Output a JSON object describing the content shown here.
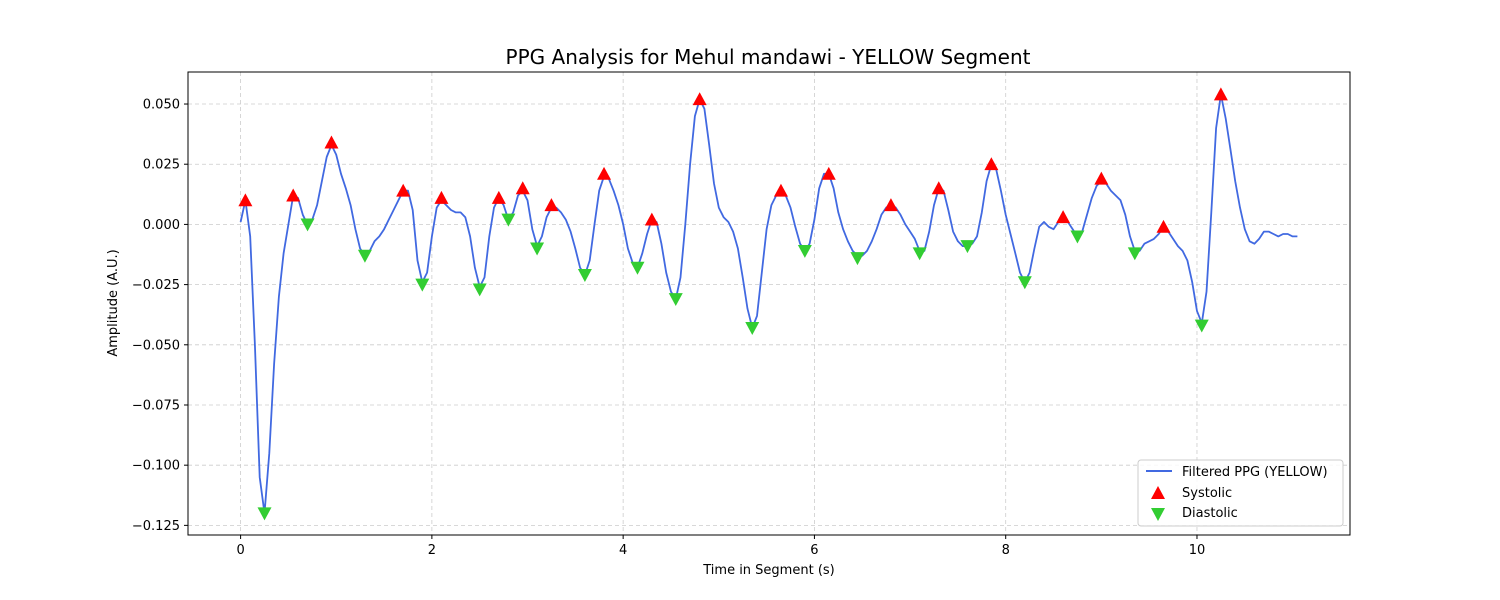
{
  "chart_data": {
    "type": "line",
    "title": "PPG Analysis for Mehul mandawi - YELLOW Segment",
    "xlabel": "Time in Segment (s)",
    "ylabel": "Amplitude (A.U.)",
    "xlim": [
      -0.55,
      11.6
    ],
    "ylim": [
      -0.129,
      0.0633
    ],
    "xticks": [
      0,
      2,
      4,
      6,
      8,
      10
    ],
    "xtick_labels": [
      "0",
      "2",
      "4",
      "6",
      "8",
      "10"
    ],
    "yticks": [
      0.05,
      0.025,
      0.0,
      -0.025,
      -0.05,
      -0.075,
      -0.1,
      -0.125
    ],
    "ytick_labels": [
      "0.050",
      "0.025",
      "0.000",
      "−0.025",
      "−0.050",
      "−0.075",
      "−0.100",
      "−0.125"
    ],
    "grid": true,
    "legend_position": "lower-right",
    "colors": {
      "line": "#4169e1",
      "systolic": "#ff0000",
      "diastolic": "#32cd32",
      "grid": "#cccccc"
    },
    "series": [
      {
        "name": "Filtered PPG (YELLOW)",
        "kind": "line",
        "points": [
          [
            0.0,
            0.001
          ],
          [
            0.05,
            0.01
          ],
          [
            0.1,
            -0.005
          ],
          [
            0.15,
            -0.05
          ],
          [
            0.2,
            -0.105
          ],
          [
            0.25,
            -0.12
          ],
          [
            0.3,
            -0.095
          ],
          [
            0.35,
            -0.058
          ],
          [
            0.4,
            -0.03
          ],
          [
            0.45,
            -0.012
          ],
          [
            0.5,
            0.0
          ],
          [
            0.55,
            0.012
          ],
          [
            0.6,
            0.011
          ],
          [
            0.65,
            0.004
          ],
          [
            0.7,
            0.0
          ],
          [
            0.75,
            0.002
          ],
          [
            0.8,
            0.008
          ],
          [
            0.85,
            0.018
          ],
          [
            0.9,
            0.028
          ],
          [
            0.95,
            0.033
          ],
          [
            1.0,
            0.029
          ],
          [
            1.05,
            0.021
          ],
          [
            1.1,
            0.015
          ],
          [
            1.15,
            0.008
          ],
          [
            1.2,
            -0.002
          ],
          [
            1.25,
            -0.01
          ],
          [
            1.3,
            -0.013
          ],
          [
            1.35,
            -0.011
          ],
          [
            1.4,
            -0.007
          ],
          [
            1.45,
            -0.005
          ],
          [
            1.5,
            -0.002
          ],
          [
            1.55,
            0.002
          ],
          [
            1.6,
            0.006
          ],
          [
            1.65,
            0.01
          ],
          [
            1.7,
            0.014
          ],
          [
            1.75,
            0.014
          ],
          [
            1.8,
            0.006
          ],
          [
            1.85,
            -0.015
          ],
          [
            1.9,
            -0.024
          ],
          [
            1.95,
            -0.02
          ],
          [
            2.0,
            -0.005
          ],
          [
            2.05,
            0.007
          ],
          [
            2.1,
            0.01
          ],
          [
            2.15,
            0.008
          ],
          [
            2.2,
            0.006
          ],
          [
            2.25,
            0.005
          ],
          [
            2.3,
            0.005
          ],
          [
            2.35,
            0.003
          ],
          [
            2.4,
            -0.005
          ],
          [
            2.45,
            -0.018
          ],
          [
            2.5,
            -0.026
          ],
          [
            2.55,
            -0.022
          ],
          [
            2.6,
            -0.005
          ],
          [
            2.65,
            0.007
          ],
          [
            2.7,
            0.011
          ],
          [
            2.75,
            0.008
          ],
          [
            2.8,
            0.002
          ],
          [
            2.85,
            0.005
          ],
          [
            2.9,
            0.012
          ],
          [
            2.95,
            0.014
          ],
          [
            3.0,
            0.01
          ],
          [
            3.05,
            -0.002
          ],
          [
            3.1,
            -0.009
          ],
          [
            3.15,
            -0.005
          ],
          [
            3.2,
            0.003
          ],
          [
            3.25,
            0.007
          ],
          [
            3.3,
            0.007
          ],
          [
            3.35,
            0.005
          ],
          [
            3.4,
            0.002
          ],
          [
            3.45,
            -0.003
          ],
          [
            3.5,
            -0.01
          ],
          [
            3.55,
            -0.018
          ],
          [
            3.6,
            -0.021
          ],
          [
            3.65,
            -0.015
          ],
          [
            3.7,
            0.0
          ],
          [
            3.75,
            0.014
          ],
          [
            3.8,
            0.02
          ],
          [
            3.85,
            0.019
          ],
          [
            3.9,
            0.014
          ],
          [
            3.95,
            0.008
          ],
          [
            4.0,
            0.0
          ],
          [
            4.05,
            -0.01
          ],
          [
            4.1,
            -0.016
          ],
          [
            4.15,
            -0.018
          ],
          [
            4.2,
            -0.012
          ],
          [
            4.25,
            -0.004
          ],
          [
            4.3,
            0.002
          ],
          [
            4.35,
            0.001
          ],
          [
            4.4,
            -0.008
          ],
          [
            4.45,
            -0.02
          ],
          [
            4.5,
            -0.028
          ],
          [
            4.55,
            -0.031
          ],
          [
            4.6,
            -0.022
          ],
          [
            4.65,
            0.0
          ],
          [
            4.7,
            0.025
          ],
          [
            4.75,
            0.045
          ],
          [
            4.8,
            0.052
          ],
          [
            4.85,
            0.048
          ],
          [
            4.9,
            0.033
          ],
          [
            4.95,
            0.017
          ],
          [
            5.0,
            0.007
          ],
          [
            5.05,
            0.003
          ],
          [
            5.1,
            0.001
          ],
          [
            5.15,
            -0.003
          ],
          [
            5.2,
            -0.01
          ],
          [
            5.25,
            -0.022
          ],
          [
            5.3,
            -0.035
          ],
          [
            5.35,
            -0.043
          ],
          [
            5.4,
            -0.038
          ],
          [
            5.45,
            -0.02
          ],
          [
            5.5,
            -0.002
          ],
          [
            5.55,
            0.008
          ],
          [
            5.6,
            0.012
          ],
          [
            5.65,
            0.013
          ],
          [
            5.7,
            0.012
          ],
          [
            5.75,
            0.007
          ],
          [
            5.8,
            -0.001
          ],
          [
            5.85,
            -0.008
          ],
          [
            5.9,
            -0.011
          ],
          [
            5.95,
            -0.008
          ],
          [
            6.0,
            0.002
          ],
          [
            6.05,
            0.015
          ],
          [
            6.1,
            0.021
          ],
          [
            6.15,
            0.021
          ],
          [
            6.2,
            0.015
          ],
          [
            6.25,
            0.005
          ],
          [
            6.3,
            -0.002
          ],
          [
            6.35,
            -0.007
          ],
          [
            6.4,
            -0.011
          ],
          [
            6.45,
            -0.013
          ],
          [
            6.5,
            -0.013
          ],
          [
            6.55,
            -0.011
          ],
          [
            6.6,
            -0.007
          ],
          [
            6.65,
            -0.002
          ],
          [
            6.7,
            0.004
          ],
          [
            6.75,
            0.007
          ],
          [
            6.8,
            0.008
          ],
          [
            6.85,
            0.007
          ],
          [
            6.9,
            0.004
          ],
          [
            6.95,
            0.0
          ],
          [
            7.0,
            -0.003
          ],
          [
            7.05,
            -0.006
          ],
          [
            7.1,
            -0.011
          ],
          [
            7.15,
            -0.011
          ],
          [
            7.2,
            -0.003
          ],
          [
            7.25,
            0.008
          ],
          [
            7.3,
            0.015
          ],
          [
            7.35,
            0.014
          ],
          [
            7.4,
            0.006
          ],
          [
            7.45,
            -0.003
          ],
          [
            7.5,
            -0.007
          ],
          [
            7.55,
            -0.009
          ],
          [
            7.6,
            -0.009
          ],
          [
            7.65,
            -0.008
          ],
          [
            7.7,
            -0.005
          ],
          [
            7.75,
            0.005
          ],
          [
            7.8,
            0.018
          ],
          [
            7.85,
            0.025
          ],
          [
            7.9,
            0.023
          ],
          [
            7.95,
            0.014
          ],
          [
            8.0,
            0.004
          ],
          [
            8.05,
            -0.004
          ],
          [
            8.1,
            -0.012
          ],
          [
            8.15,
            -0.02
          ],
          [
            8.2,
            -0.024
          ],
          [
            8.25,
            -0.02
          ],
          [
            8.3,
            -0.01
          ],
          [
            8.35,
            -0.001
          ],
          [
            8.4,
            0.001
          ],
          [
            8.45,
            -0.001
          ],
          [
            8.5,
            -0.002
          ],
          [
            8.55,
            0.001
          ],
          [
            8.6,
            0.003
          ],
          [
            8.65,
            0.001
          ],
          [
            8.7,
            -0.002
          ],
          [
            8.75,
            -0.005
          ],
          [
            8.8,
            -0.003
          ],
          [
            8.85,
            0.004
          ],
          [
            8.9,
            0.011
          ],
          [
            8.95,
            0.016
          ],
          [
            9.0,
            0.018
          ],
          [
            9.05,
            0.017
          ],
          [
            9.1,
            0.014
          ],
          [
            9.15,
            0.012
          ],
          [
            9.2,
            0.01
          ],
          [
            9.25,
            0.004
          ],
          [
            9.3,
            -0.005
          ],
          [
            9.35,
            -0.011
          ],
          [
            9.4,
            -0.011
          ],
          [
            9.45,
            -0.008
          ],
          [
            9.5,
            -0.007
          ],
          [
            9.55,
            -0.006
          ],
          [
            9.6,
            -0.004
          ],
          [
            9.65,
            -0.001
          ],
          [
            9.7,
            -0.003
          ],
          [
            9.75,
            -0.006
          ],
          [
            9.8,
            -0.009
          ],
          [
            9.85,
            -0.011
          ],
          [
            9.9,
            -0.015
          ],
          [
            9.95,
            -0.024
          ],
          [
            10.0,
            -0.036
          ],
          [
            10.05,
            -0.041
          ],
          [
            10.1,
            -0.028
          ],
          [
            10.15,
            0.005
          ],
          [
            10.2,
            0.04
          ],
          [
            10.25,
            0.054
          ],
          [
            10.3,
            0.044
          ],
          [
            10.35,
            0.031
          ],
          [
            10.4,
            0.018
          ],
          [
            10.45,
            0.007
          ],
          [
            10.5,
            -0.002
          ],
          [
            10.55,
            -0.007
          ],
          [
            10.6,
            -0.008
          ],
          [
            10.65,
            -0.006
          ],
          [
            10.7,
            -0.003
          ],
          [
            10.75,
            -0.003
          ],
          [
            10.8,
            -0.004
          ],
          [
            10.85,
            -0.005
          ],
          [
            10.9,
            -0.004
          ],
          [
            10.95,
            -0.004
          ],
          [
            11.0,
            -0.005
          ],
          [
            11.05,
            -0.005
          ]
        ]
      },
      {
        "name": "Systolic",
        "kind": "marker-up",
        "points": [
          [
            0.05,
            0.01
          ],
          [
            0.55,
            0.012
          ],
          [
            0.95,
            0.034
          ],
          [
            1.7,
            0.014
          ],
          [
            2.1,
            0.011
          ],
          [
            2.7,
            0.011
          ],
          [
            2.95,
            0.015
          ],
          [
            3.25,
            0.008
          ],
          [
            3.8,
            0.021
          ],
          [
            4.3,
            0.002
          ],
          [
            4.8,
            0.052
          ],
          [
            5.65,
            0.014
          ],
          [
            6.15,
            0.021
          ],
          [
            6.8,
            0.008
          ],
          [
            7.3,
            0.015
          ],
          [
            7.85,
            0.025
          ],
          [
            8.6,
            0.003
          ],
          [
            9.0,
            0.019
          ],
          [
            9.65,
            -0.001
          ],
          [
            10.25,
            0.054
          ]
        ]
      },
      {
        "name": "Diastolic",
        "kind": "marker-down",
        "points": [
          [
            0.25,
            -0.12
          ],
          [
            0.7,
            0.0
          ],
          [
            1.3,
            -0.013
          ],
          [
            1.9,
            -0.025
          ],
          [
            2.5,
            -0.027
          ],
          [
            2.8,
            0.002
          ],
          [
            3.1,
            -0.01
          ],
          [
            3.6,
            -0.021
          ],
          [
            4.15,
            -0.018
          ],
          [
            4.55,
            -0.031
          ],
          [
            5.35,
            -0.043
          ],
          [
            5.9,
            -0.011
          ],
          [
            6.45,
            -0.014
          ],
          [
            7.1,
            -0.012
          ],
          [
            7.6,
            -0.009
          ],
          [
            8.2,
            -0.024
          ],
          [
            8.75,
            -0.005
          ],
          [
            9.35,
            -0.012
          ],
          [
            10.05,
            -0.042
          ]
        ]
      }
    ]
  }
}
